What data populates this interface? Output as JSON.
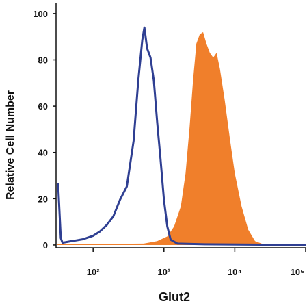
{
  "chart_data": {
    "type": "histogram-overlay",
    "x_label": "Glut2",
    "y_label": "Relative Cell Number",
    "xscale": "log",
    "xlim": [
      30,
      100000
    ],
    "ylim": [
      -1.2,
      104.4
    ],
    "xticks": [
      {
        "value": 100,
        "label": "10²"
      },
      {
        "value": 1000,
        "label": "10³"
      },
      {
        "value": 10000,
        "label": "10⁴"
      },
      {
        "value": 100000,
        "label": "10⁵"
      }
    ],
    "yticks": [
      0,
      20,
      40,
      60,
      80,
      100
    ],
    "series": [
      {
        "style": "line",
        "color": "#2f3f92",
        "x": [
          32,
          35,
          37,
          46,
          58,
          72,
          100,
          124,
          155,
          193,
          240,
          299,
          373,
          434,
          495,
          530,
          578,
          645,
          720,
          803,
          896,
          1000,
          1116,
          1245,
          1551,
          3728,
          100000
        ],
        "values": [
          26.8,
          3,
          1,
          1.5,
          2,
          2.5,
          4,
          5.8,
          8.6,
          12.4,
          19.6,
          25.3,
          45,
          71,
          88.6,
          94,
          85,
          81,
          71,
          53,
          37,
          19.4,
          8,
          2.3,
          0.6,
          0.3,
          0
        ]
      },
      {
        "style": "area",
        "color": "#f07f2b",
        "x": [
          31,
          518,
          803,
          1116,
          1389,
          1731,
          2018,
          2301,
          2570,
          2866,
          3199,
          3565,
          3981,
          4443,
          4958,
          5534,
          6172,
          7194,
          8577,
          10000,
          12450,
          15490,
          19320,
          26830,
          100000
        ],
        "values": [
          0.3,
          0.6,
          1.7,
          3.7,
          8,
          16.7,
          31,
          51,
          71,
          87,
          91,
          92,
          87,
          83,
          81,
          83,
          76,
          62.7,
          45.3,
          31,
          16.7,
          6.6,
          1.7,
          0,
          0
        ]
      }
    ]
  }
}
